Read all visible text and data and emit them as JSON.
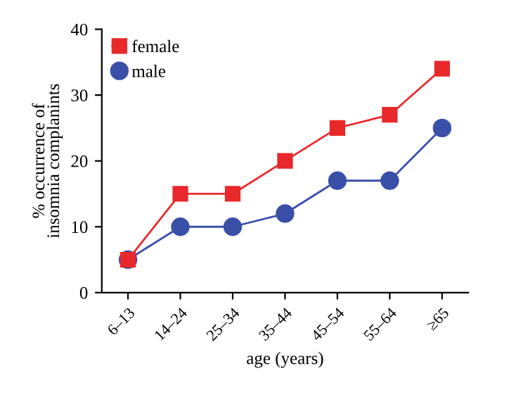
{
  "chart_data": {
    "type": "line",
    "xlabel": "age (years)",
    "ylabel": "% occurrence of\ninsomnia complanints",
    "categories": [
      "6–13",
      "14–24",
      "25–34",
      "35–44",
      "45–54",
      "55–64",
      "≥65"
    ],
    "series": [
      {
        "name": "male",
        "color": "#3a4fa8",
        "marker": "circle",
        "values": [
          5,
          10,
          10,
          12,
          17,
          17,
          25
        ]
      },
      {
        "name": "female",
        "color": "#e8282a",
        "marker": "square",
        "values": [
          5,
          15,
          15,
          20,
          25,
          27,
          34
        ]
      }
    ],
    "ylim": [
      0,
      40
    ],
    "yticks": [
      0,
      10,
      20,
      30,
      40
    ],
    "grid": false,
    "legend": "top left",
    "line_style": "solid"
  }
}
